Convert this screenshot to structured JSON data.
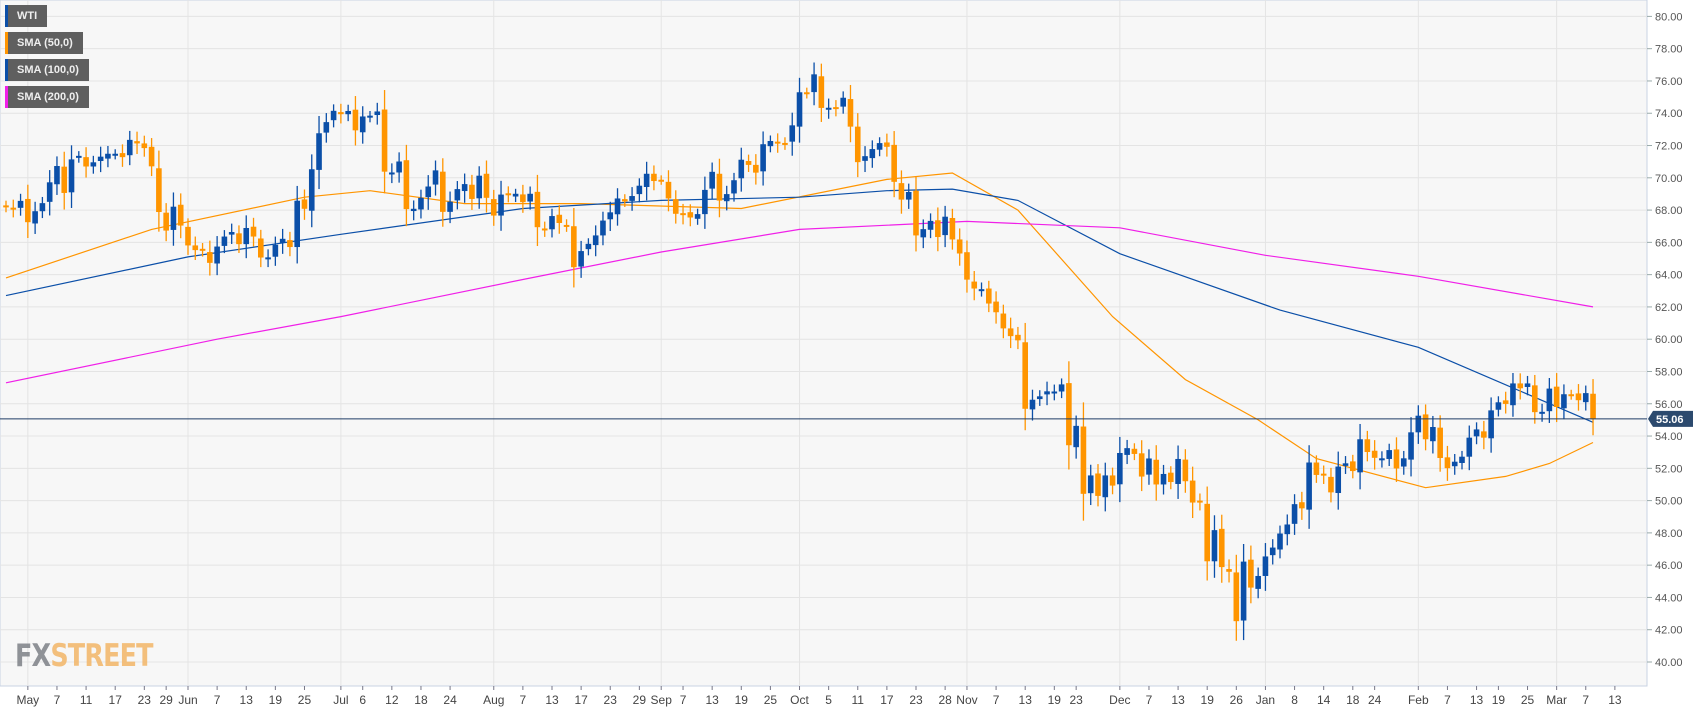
{
  "chart_data": {
    "type": "candlestick",
    "instrument": "WTI",
    "ylim": [
      38.5,
      81
    ],
    "yticks": [
      "40.00",
      "42.00",
      "44.00",
      "46.00",
      "48.00",
      "50.00",
      "52.00",
      "54.00",
      "56.00",
      "58.00",
      "60.00",
      "62.00",
      "64.00",
      "66.00",
      "68.00",
      "70.00",
      "72.00",
      "74.00",
      "76.00",
      "78.00",
      "80.00"
    ],
    "last_price": 55.06,
    "last_price_label": "55.06",
    "xticks": [
      {
        "label": "May",
        "index": 3,
        "month": true
      },
      {
        "label": "7",
        "index": 7
      },
      {
        "label": "11",
        "index": 11
      },
      {
        "label": "17",
        "index": 15
      },
      {
        "label": "23",
        "index": 19
      },
      {
        "label": "29",
        "index": 22
      },
      {
        "label": "Jun",
        "index": 25,
        "month": true
      },
      {
        "label": "7",
        "index": 29
      },
      {
        "label": "13",
        "index": 33
      },
      {
        "label": "19",
        "index": 37
      },
      {
        "label": "25",
        "index": 41
      },
      {
        "label": "Jul",
        "index": 46,
        "month": true
      },
      {
        "label": "6",
        "index": 49
      },
      {
        "label": "12",
        "index": 53
      },
      {
        "label": "18",
        "index": 57
      },
      {
        "label": "24",
        "index": 61
      },
      {
        "label": "Aug",
        "index": 67,
        "month": true
      },
      {
        "label": "7",
        "index": 71
      },
      {
        "label": "13",
        "index": 75
      },
      {
        "label": "17",
        "index": 79
      },
      {
        "label": "23",
        "index": 83
      },
      {
        "label": "29",
        "index": 87
      },
      {
        "label": "Sep",
        "index": 90,
        "month": true
      },
      {
        "label": "7",
        "index": 93
      },
      {
        "label": "13",
        "index": 97
      },
      {
        "label": "19",
        "index": 101
      },
      {
        "label": "25",
        "index": 105
      },
      {
        "label": "Oct",
        "index": 109,
        "month": true
      },
      {
        "label": "5",
        "index": 113
      },
      {
        "label": "11",
        "index": 117
      },
      {
        "label": "17",
        "index": 121
      },
      {
        "label": "23",
        "index": 125
      },
      {
        "label": "28",
        "index": 129
      },
      {
        "label": "Nov",
        "index": 132,
        "month": true
      },
      {
        "label": "7",
        "index": 136
      },
      {
        "label": "13",
        "index": 140
      },
      {
        "label": "19",
        "index": 144
      },
      {
        "label": "23",
        "index": 147
      },
      {
        "label": "Dec",
        "index": 153,
        "month": true
      },
      {
        "label": "7",
        "index": 157
      },
      {
        "label": "13",
        "index": 161
      },
      {
        "label": "19",
        "index": 165
      },
      {
        "label": "26",
        "index": 169
      },
      {
        "label": "Jan",
        "index": 173,
        "month": true
      },
      {
        "label": "8",
        "index": 177
      },
      {
        "label": "14",
        "index": 181
      },
      {
        "label": "18",
        "index": 185
      },
      {
        "label": "24",
        "index": 188
      },
      {
        "label": "Feb",
        "index": 194,
        "month": true
      },
      {
        "label": "7",
        "index": 198
      },
      {
        "label": "13",
        "index": 202
      },
      {
        "label": "19",
        "index": 205
      },
      {
        "label": "25",
        "index": 209
      },
      {
        "label": "Mar",
        "index": 213,
        "month": true
      },
      {
        "label": "7",
        "index": 217
      },
      {
        "label": "13",
        "index": 221
      }
    ],
    "close": [
      68.19,
      68.1,
      68.57,
      67.25,
      67.93,
      68.43,
      69.72,
      70.73,
      69.06,
      71.14,
      71.36,
      70.7,
      70.96,
      71.31,
      71.49,
      71.49,
      71.28,
      72.35,
      72.13,
      71.84,
      70.71,
      67.88,
      66.73,
      68.21,
      67.04,
      65.81,
      65.52,
      65.52,
      64.73,
      65.74,
      66.36,
      66.64,
      65.89,
      66.89,
      66.36,
      65.06,
      65.07,
      65.85,
      66.22,
      65.71,
      68.58,
      68.08,
      70.53,
      72.76,
      73.45,
      74.15,
      73.94,
      74.14,
      72.94,
      73.8,
      73.85,
      74.11,
      70.38,
      70.33,
      71.01,
      68.06,
      68.08,
      68.76,
      69.46,
      70.46,
      67.89,
      68.52,
      69.3,
      69.61,
      68.69,
      70.13,
      68.76,
      67.66,
      68.96,
      68.96,
      69.01,
      68.49,
      69.01,
      66.94,
      66.81,
      67.63,
      67.2,
      67.04,
      64.46,
      65.46,
      65.91,
      66.43,
      67.35,
      67.86,
      68.72,
      68.53,
      68.87,
      69.51,
      70.25,
      69.8,
      69.87,
      68.72,
      67.77,
      67.75,
      67.54,
      67.75,
      69.25,
      70.37,
      68.59,
      68.99,
      69.85,
      71.12,
      70.8,
      70.32,
      72.08,
      72.28,
      72.12,
      72.12,
      73.25,
      75.3,
      75.23,
      76.41,
      74.33,
      74.34,
      74.29,
      74.96,
      73.17,
      70.97,
      71.34,
      71.78,
      72.15,
      71.92,
      69.75,
      68.65,
      69.12,
      66.43,
      66.82,
      67.33,
      66.33,
      67.59,
      66.18,
      65.31,
      63.69,
      63.14,
      63.1,
      62.21,
      61.67,
      60.67,
      60.19,
      59.93,
      55.69,
      56.25,
      56.46,
      56.77,
      56.76,
      57.2,
      53.43,
      54.63,
      50.42,
      51.56,
      50.29,
      51.56,
      50.93,
      52.95,
      53.25,
      52.89,
      51.49,
      52.61,
      51.0,
      51.65,
      51.15,
      52.58,
      51.2,
      49.88,
      49.88,
      46.24,
      48.17,
      45.88,
      45.59,
      42.53,
      46.22,
      44.61,
      45.33,
      46.54,
      47.09,
      47.96,
      48.52,
      49.78,
      49.52,
      52.36,
      51.59,
      51.59,
      50.51,
      52.11,
      52.31,
      51.83,
      53.8,
      53.01,
      52.65,
      52.62,
      53.13,
      51.99,
      52.62,
      54.23,
      55.26,
      53.8,
      54.56,
      52.64,
      52.01,
      52.41,
      52.72,
      53.9,
      54.41,
      53.9,
      55.59,
      56.09,
      55.99,
      57.26,
      56.96,
      57.26,
      55.48,
      55.5,
      56.94,
      55.8,
      56.59,
      56.56,
      56.22,
      56.66,
      55.06
    ],
    "series": [
      {
        "name": "SMA (50,0)",
        "color": "#ff9500",
        "points": [
          [
            0,
            63.8
          ],
          [
            20,
            66.8
          ],
          [
            41,
            68.8
          ],
          [
            50,
            69.2
          ],
          [
            63,
            68.4
          ],
          [
            79,
            68.4
          ],
          [
            101,
            68.1
          ],
          [
            121,
            69.9
          ],
          [
            130,
            70.3
          ],
          [
            139,
            68.0
          ],
          [
            152,
            61.4
          ],
          [
            162,
            57.5
          ],
          [
            172,
            55.0
          ],
          [
            180,
            52.6
          ],
          [
            195,
            50.8
          ],
          [
            206,
            51.5
          ],
          [
            212,
            52.3
          ],
          [
            218,
            53.6
          ]
        ]
      },
      {
        "name": "SMA (100,0)",
        "color": "#0b4fa8",
        "points": [
          [
            0,
            62.7
          ],
          [
            25,
            65.1
          ],
          [
            46,
            66.5
          ],
          [
            71,
            68.1
          ],
          [
            90,
            68.6
          ],
          [
            109,
            68.8
          ],
          [
            121,
            69.2
          ],
          [
            130,
            69.3
          ],
          [
            139,
            68.6
          ],
          [
            153,
            65.3
          ],
          [
            175,
            61.8
          ],
          [
            194,
            59.5
          ],
          [
            210,
            56.4
          ],
          [
            218,
            54.85
          ]
        ]
      },
      {
        "name": "SMA (200,0)",
        "color": "#f020e8",
        "points": [
          [
            0,
            57.3
          ],
          [
            29,
            60.0
          ],
          [
            46,
            61.4
          ],
          [
            71,
            63.7
          ],
          [
            90,
            65.4
          ],
          [
            109,
            66.8
          ],
          [
            132,
            67.3
          ],
          [
            153,
            66.9
          ],
          [
            173,
            65.2
          ],
          [
            194,
            63.9
          ],
          [
            218,
            62.0
          ]
        ]
      }
    ],
    "legend": [
      {
        "label": "WTI",
        "color": "#0b4fa8"
      },
      {
        "label": "SMA (50,0)",
        "color": "#ff9500"
      },
      {
        "label": "SMA (100,0)",
        "color": "#0b4fa8"
      },
      {
        "label": "SMA (200,0)",
        "color": "#f020e8"
      }
    ],
    "legend_placement": "top-left",
    "colors": {
      "up": "#0b4fa8",
      "down": "#ff9500",
      "price_line": "#1f3d66",
      "grid": "#e4e4e4",
      "bg": "#f7f7f7"
    }
  },
  "logo": {
    "part1": "FX",
    "part2": "STREET"
  }
}
